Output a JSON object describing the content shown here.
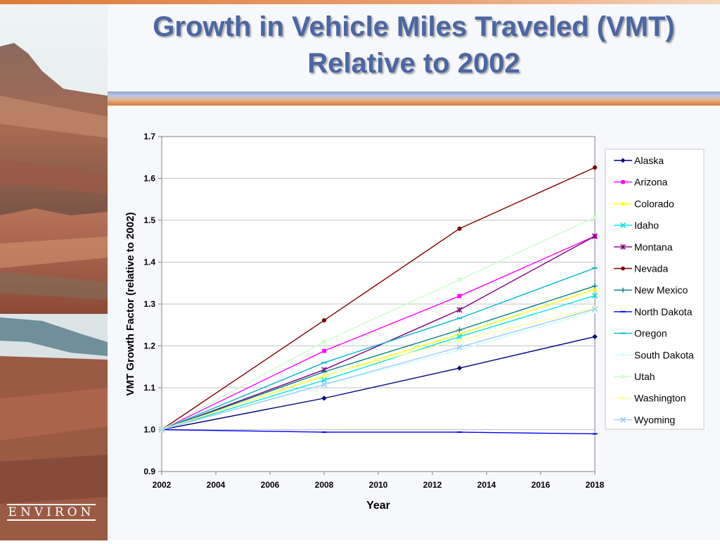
{
  "slide": {
    "title_line1": "Growth in Vehicle Miles Traveled (VMT)",
    "title_line2": "Relative to 2002",
    "logo_text": "ENVIRON"
  },
  "chart_data": {
    "type": "line",
    "title": "",
    "xlabel": "Year",
    "ylabel": "VMT Growth Factor (relative to 2002)",
    "xlim": [
      2002,
      2018
    ],
    "ylim": [
      0.9,
      1.7
    ],
    "xticks": [
      2002,
      2004,
      2006,
      2008,
      2010,
      2012,
      2014,
      2016,
      2018
    ],
    "yticks": [
      "0.9",
      "1.0",
      "1.1",
      "1.2",
      "1.3",
      "1.4",
      "1.5",
      "1.6",
      "1.7"
    ],
    "grid": true,
    "legend_position": "right",
    "x": [
      2002,
      2008,
      2013,
      2018
    ],
    "series": [
      {
        "name": "Alaska",
        "color": "#000080",
        "marker": "diamond",
        "values": [
          1.0,
          1.075,
          1.147,
          1.222
        ]
      },
      {
        "name": "Arizona",
        "color": "#ff00ff",
        "marker": "square",
        "values": [
          1.0,
          1.188,
          1.319,
          1.462
        ]
      },
      {
        "name": "Colorado",
        "color": "#ffff00",
        "marker": "triangle",
        "values": [
          1.0,
          1.128,
          1.228,
          1.335
        ]
      },
      {
        "name": "Idaho",
        "color": "#00e5e5",
        "marker": "x",
        "values": [
          1.0,
          1.118,
          1.222,
          1.32
        ]
      },
      {
        "name": "Montana",
        "color": "#800080",
        "marker": "star",
        "values": [
          1.0,
          1.143,
          1.286,
          1.462
        ]
      },
      {
        "name": "Nevada",
        "color": "#800000",
        "marker": "circle",
        "values": [
          1.0,
          1.261,
          1.48,
          1.626
        ]
      },
      {
        "name": "New Mexico",
        "color": "#008080",
        "marker": "plus",
        "values": [
          1.0,
          1.138,
          1.238,
          1.343
        ]
      },
      {
        "name": "North Dakota",
        "color": "#0000ff",
        "marker": "dash",
        "values": [
          1.0,
          0.994,
          0.994,
          0.99
        ]
      },
      {
        "name": "Oregon",
        "color": "#00b5d0",
        "marker": "dash",
        "values": [
          1.0,
          1.16,
          1.266,
          1.386
        ]
      },
      {
        "name": "South Dakota",
        "color": "#ccffff",
        "marker": "plus",
        "values": [
          1.0,
          1.107,
          1.19,
          1.283
        ]
      },
      {
        "name": "Utah",
        "color": "#ccffcc",
        "marker": "square",
        "values": [
          1.0,
          1.21,
          1.358,
          1.507
        ]
      },
      {
        "name": "Washington",
        "color": "#ffff99",
        "marker": "triangle",
        "values": [
          1.0,
          1.13,
          1.214,
          1.29
        ]
      },
      {
        "name": "Wyoming",
        "color": "#99ccff",
        "marker": "x",
        "values": [
          1.0,
          1.108,
          1.197,
          1.288
        ]
      }
    ]
  }
}
